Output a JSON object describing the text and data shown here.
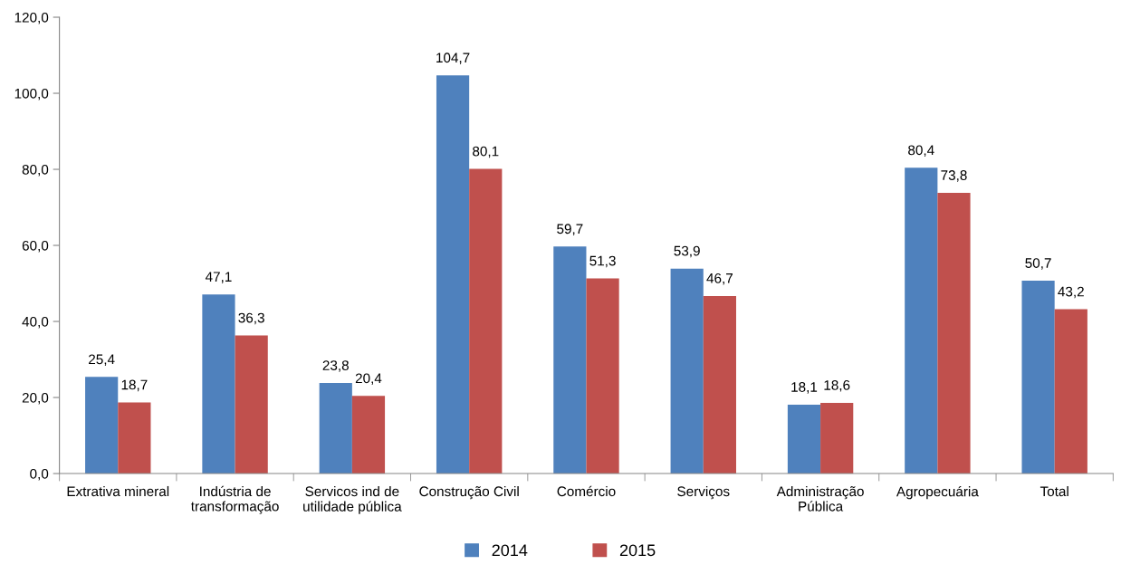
{
  "chart_data": {
    "type": "bar",
    "categories": [
      "Extrativa mineral",
      "Indústria de\ntransformação",
      "Servicos ind de\nutilidade pública",
      "Construção Civil",
      "Comércio",
      "Serviços",
      "Administração\nPública",
      "Agropecuária",
      "Total"
    ],
    "series": [
      {
        "name": "2014",
        "color": "#4f81bd",
        "values": [
          25.4,
          47.1,
          23.8,
          104.7,
          59.7,
          53.9,
          18.1,
          80.4,
          50.7
        ],
        "value_labels": [
          "25,4",
          "47,1",
          "23,8",
          "104,7",
          "59,7",
          "53,9",
          "18,1",
          "80,4",
          "50,7"
        ]
      },
      {
        "name": "2015",
        "color": "#c0504d",
        "values": [
          18.7,
          36.3,
          20.4,
          80.1,
          51.3,
          46.7,
          18.6,
          73.8,
          43.2
        ],
        "value_labels": [
          "18,7",
          "36,3",
          "20,4",
          "80,1",
          "51,3",
          "46,7",
          "18,6",
          "73,8",
          "43,2"
        ]
      }
    ],
    "ylim": [
      0,
      120
    ],
    "yticks": [
      {
        "value": 0,
        "label": "0,0"
      },
      {
        "value": 20,
        "label": "20,0"
      },
      {
        "value": 40,
        "label": "40,0"
      },
      {
        "value": 60,
        "label": "60,0"
      },
      {
        "value": 80,
        "label": "80,0"
      },
      {
        "value": 100,
        "label": "100,0"
      },
      {
        "value": 120,
        "label": "120,0"
      }
    ],
    "grid": false,
    "legend": "bottom"
  }
}
